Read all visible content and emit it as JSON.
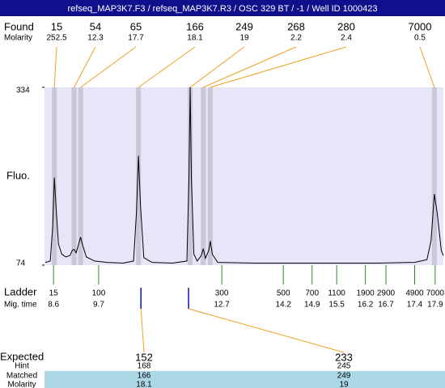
{
  "chart_data": {
    "type": "line",
    "title": "refseq_MAP3K7.F3 / refseq_MAP3K7.R3 / OSC 329 BT / -1 / Well ID 1000423",
    "y_label": "Fluo.",
    "found_label": "Found",
    "molarity_label": "Molarity",
    "ladder_label": "Ladder",
    "migtime_label": "Mig. time",
    "xlim": [
      8.38,
      18.1
    ],
    "ylim": [
      74,
      334
    ],
    "yticks": [
      74,
      334
    ],
    "x": [
      8.4,
      8.52,
      8.58,
      8.62,
      8.66,
      8.72,
      8.8,
      8.9,
      9.0,
      9.06,
      9.1,
      9.15,
      9.22,
      9.26,
      9.3,
      9.4,
      9.6,
      9.9,
      10.3,
      10.55,
      10.62,
      10.67,
      10.72,
      10.8,
      11.0,
      11.5,
      11.85,
      11.9,
      11.93,
      11.96,
      12.02,
      12.1,
      12.2,
      12.25,
      12.3,
      12.38,
      12.42,
      12.47,
      12.6,
      13.5,
      14.5,
      15.5,
      16.5,
      17.4,
      17.7,
      17.8,
      17.88,
      17.95,
      18.05,
      18.1
    ],
    "series": [
      {
        "color": "#000000",
        "values": [
          78,
          80,
          130,
          202,
          160,
          105,
          90,
          86,
          88,
          96,
          97,
          92,
          106,
          115,
          105,
          86,
          80,
          78,
          77,
          80,
          150,
          234,
          160,
          85,
          78,
          77,
          80,
          200,
          334,
          200,
          90,
          80,
          88,
          98,
          84,
          95,
          109,
          90,
          78,
          77,
          77,
          77,
          77,
          78,
          82,
          110,
          178,
          150,
          95,
          88
        ]
      }
    ],
    "found": [
      {
        "size": 15,
        "molarity": 252.5,
        "time": 8.62
      },
      {
        "size": 54,
        "molarity": 12.3,
        "time": 9.1
      },
      {
        "size": 65,
        "molarity": 17.7,
        "time": 9.26
      },
      {
        "size": 166,
        "molarity": 18.1,
        "time": 10.67
      },
      {
        "size": 249,
        "molarity": 19,
        "time": 11.93
      },
      {
        "size": 268,
        "molarity": 2.2,
        "time": 12.25
      },
      {
        "size": 280,
        "molarity": 2.4,
        "time": 12.42
      },
      {
        "size": 7000,
        "molarity": 0.5,
        "time": 17.88
      }
    ],
    "ladder": [
      {
        "size": 15,
        "time": 8.6
      },
      {
        "size": 100,
        "time": 9.7
      },
      {
        "size": 300,
        "time": 12.7
      },
      {
        "size": 500,
        "time": 14.2
      },
      {
        "size": 700,
        "time": 14.9
      },
      {
        "size": 1100,
        "time": 15.5
      },
      {
        "size": 1900,
        "time": 16.2
      },
      {
        "size": 2900,
        "time": 16.7
      },
      {
        "size": 4900,
        "time": 17.4
      },
      {
        "size": 7000,
        "time": 17.9
      }
    ],
    "expected": {
      "label": "Expected",
      "hint_label": "Hint",
      "matched_label": "Matched",
      "molarity_label": "Molarity",
      "columns": [
        {
          "expected": 152,
          "hint": 168,
          "matched": 166,
          "molarity": 18.1,
          "time": 10.73
        },
        {
          "expected": 233,
          "hint": 245,
          "matched": 249,
          "molarity": 19,
          "time": 11.89
        }
      ]
    }
  }
}
